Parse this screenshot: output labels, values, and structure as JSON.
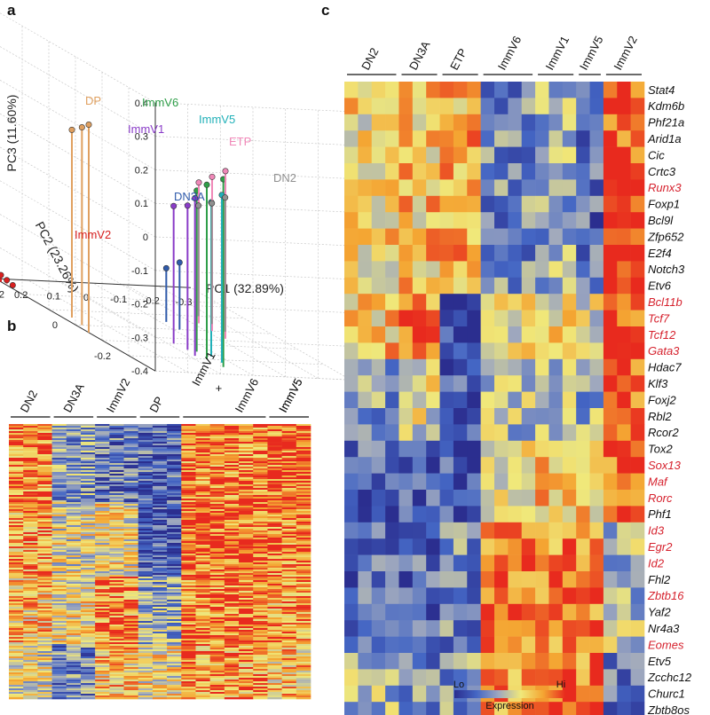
{
  "panels": {
    "a": "a",
    "b": "b",
    "c": "c"
  },
  "chart_data": [
    {
      "panel": "a",
      "type": "scatter",
      "title": "",
      "xlabel": "PC1 (32.89%)",
      "ylabel": "PC2 (23.26%)",
      "zlabel": "PC3 (11.60%)",
      "x_ticks": [
        "0.3",
        "0.2",
        "0.1",
        "0",
        "-0.1",
        "-0.2",
        "-0.3"
      ],
      "y_ticks": [
        "-0.2",
        "0",
        "0.2"
      ],
      "z_ticks": [
        "0.4",
        "0.3",
        "0.2",
        "0.1",
        "0",
        "-0.1",
        "-0.2",
        "-0.3",
        "-0.4"
      ],
      "xlim": [
        -0.3,
        0.3
      ],
      "ylim": [
        -0.3,
        0.3
      ],
      "zlim": [
        -0.4,
        0.4
      ],
      "series": [
        {
          "name": "DP",
          "color": "#E0A060",
          "points": [
            [
              0.3,
              -0.05,
              0.22
            ],
            [
              0.28,
              0.0,
              0.19
            ],
            [
              0.27,
              0.05,
              0.16
            ]
          ]
        },
        {
          "name": "ImmV6",
          "color": "#2E9E48",
          "points": [
            [
              0.05,
              -0.25,
              0.16
            ],
            [
              0.06,
              -0.2,
              0.12
            ],
            [
              0.05,
              -0.15,
              0.08
            ]
          ]
        },
        {
          "name": "ImmV5",
          "color": "#20B0B8",
          "points": [
            [
              0.03,
              -0.22,
              0.1
            ],
            [
              0.03,
              -0.18,
              0.06
            ]
          ]
        },
        {
          "name": "ImmV1",
          "color": "#8A3CC8",
          "points": [
            [
              0.08,
              -0.18,
              0.07
            ],
            [
              0.07,
              -0.14,
              0.03
            ],
            [
              0.08,
              -0.1,
              0.01
            ]
          ]
        },
        {
          "name": "ETP",
          "color": "#F088B8",
          "points": [
            [
              -0.12,
              -0.05,
              0.1
            ],
            [
              -0.12,
              0.0,
              0.06
            ],
            [
              -0.12,
              0.05,
              0.02
            ]
          ]
        },
        {
          "name": "DN2",
          "color": "#909090",
          "points": [
            [
              -0.16,
              0.0,
              0.0
            ],
            [
              -0.16,
              0.05,
              -0.04
            ],
            [
              -0.16,
              0.1,
              -0.07
            ]
          ]
        },
        {
          "name": "DN3A",
          "color": "#2F5AAA",
          "points": [
            [
              -0.02,
              0.0,
              -0.2
            ],
            [
              -0.02,
              0.05,
              -0.24
            ]
          ]
        },
        {
          "name": "ImmV2",
          "color": "#D82020",
          "points": [
            [
              0.3,
              0.28,
              -0.38
            ],
            [
              0.29,
              0.27,
              -0.39
            ],
            [
              0.28,
              0.26,
              -0.4
            ]
          ]
        }
      ]
    },
    {
      "panel": "b",
      "type": "heatmap",
      "groups": [
        "DN2",
        "DN3A",
        "ImmV2",
        "DP",
        "ImmV1",
        "+",
        "ImmV6",
        "ImmV5"
      ],
      "colorscale": [
        "#2B2E8F",
        "#4466C4",
        "#9FA8BE",
        "#F0E87A",
        "#F4A532",
        "#E82A1E"
      ],
      "note": "~300 genes x 21 samples; rows clustered"
    },
    {
      "panel": "c",
      "type": "heatmap",
      "columns": [
        "DN2",
        "DN3A",
        "ETP",
        "ImmV6",
        "ImmV1",
        "ImmV5",
        "ImmV2"
      ],
      "rows": [
        {
          "gene": "Stat4",
          "color": "#111111"
        },
        {
          "gene": "Kdm6b",
          "color": "#111111"
        },
        {
          "gene": "Phf21a",
          "color": "#111111"
        },
        {
          "gene": "Arid1a",
          "color": "#111111"
        },
        {
          "gene": "Cic",
          "color": "#111111"
        },
        {
          "gene": "Crtc3",
          "color": "#111111"
        },
        {
          "gene": "Runx3",
          "color": "#D6222E"
        },
        {
          "gene": "Foxp1",
          "color": "#111111"
        },
        {
          "gene": "Bcl9l",
          "color": "#111111"
        },
        {
          "gene": "Zfp652",
          "color": "#111111"
        },
        {
          "gene": "E2f4",
          "color": "#111111"
        },
        {
          "gene": "Notch3",
          "color": "#111111"
        },
        {
          "gene": "Etv6",
          "color": "#111111"
        },
        {
          "gene": "Bcl11b",
          "color": "#D6222E"
        },
        {
          "gene": "Tcf7",
          "color": "#D6222E"
        },
        {
          "gene": "Tcf12",
          "color": "#D6222E"
        },
        {
          "gene": "Gata3",
          "color": "#D6222E"
        },
        {
          "gene": "Hdac7",
          "color": "#111111"
        },
        {
          "gene": "Klf3",
          "color": "#111111"
        },
        {
          "gene": "Foxj2",
          "color": "#111111"
        },
        {
          "gene": "Rbl2",
          "color": "#111111"
        },
        {
          "gene": "Rcor2",
          "color": "#111111"
        },
        {
          "gene": "Tox2",
          "color": "#111111"
        },
        {
          "gene": "Sox13",
          "color": "#D6222E"
        },
        {
          "gene": "Maf",
          "color": "#D6222E"
        },
        {
          "gene": "Rorc",
          "color": "#D6222E"
        },
        {
          "gene": "Phf1",
          "color": "#111111"
        },
        {
          "gene": "Id3",
          "color": "#D6222E"
        },
        {
          "gene": "Egr2",
          "color": "#D6222E"
        },
        {
          "gene": "Id2",
          "color": "#D6222E"
        },
        {
          "gene": "Fhl2",
          "color": "#111111"
        },
        {
          "gene": "Zbtb16",
          "color": "#D6222E"
        },
        {
          "gene": "Yaf2",
          "color": "#111111"
        },
        {
          "gene": "Nr4a3",
          "color": "#111111"
        },
        {
          "gene": "Eomes",
          "color": "#D6222E"
        },
        {
          "gene": "Etv5",
          "color": "#111111"
        },
        {
          "gene": "Zcchc12",
          "color": "#111111"
        },
        {
          "gene": "Churc1",
          "color": "#111111"
        },
        {
          "gene": "Zbtb8os",
          "color": "#111111"
        }
      ],
      "legend": {
        "lo": "Lo",
        "hi": "Hi",
        "title": "Expression"
      },
      "colorscale": [
        "#2B2E8F",
        "#4466C4",
        "#9FA8BE",
        "#F0E87A",
        "#F4A532",
        "#E82A1E"
      ]
    }
  ]
}
